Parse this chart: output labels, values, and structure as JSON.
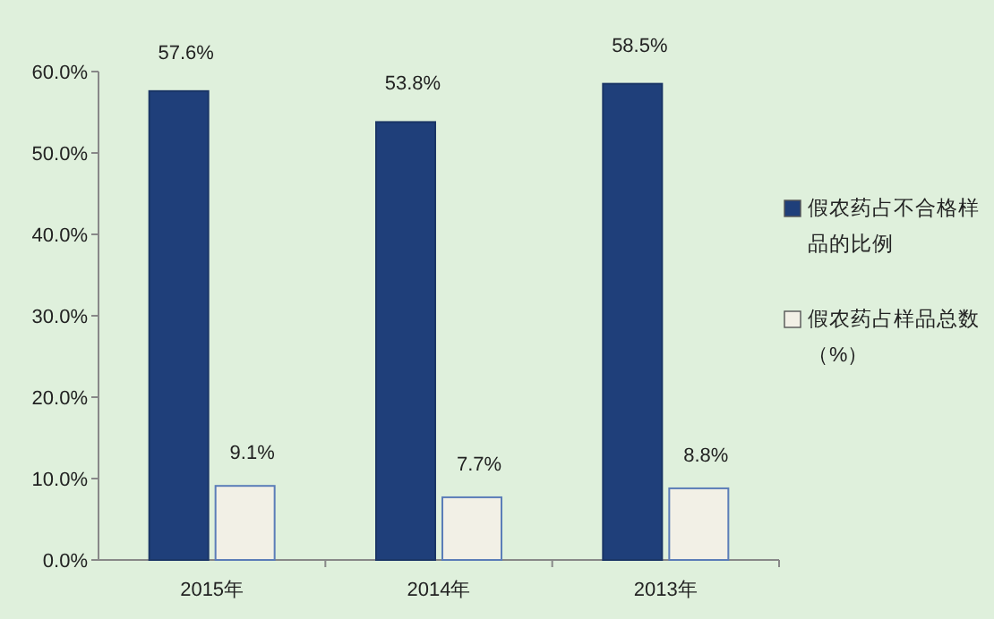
{
  "chart_data": {
    "type": "bar",
    "categories": [
      "2015年",
      "2014年",
      "2013年"
    ],
    "series": [
      {
        "name": "假农药占不合格样品的比例",
        "color": "#1f3f7a",
        "values": [
          57.6,
          53.8,
          58.5
        ],
        "value_labels": [
          "57.6%",
          "53.8%",
          "58.5%"
        ]
      },
      {
        "name": "假农药占样品总数（%）",
        "color": "#f2f0e6",
        "values": [
          9.1,
          7.7,
          8.8
        ],
        "value_labels": [
          "9.1%",
          "7.7%",
          "8.8%"
        ]
      }
    ],
    "ylim": [
      0,
      60
    ],
    "yticks": [
      {
        "value": 0,
        "label": "0.0%"
      },
      {
        "value": 10,
        "label": "10.0%"
      },
      {
        "value": 20,
        "label": "20.0%"
      },
      {
        "value": 30,
        "label": "30.0%"
      },
      {
        "value": 40,
        "label": "40.0%"
      },
      {
        "value": 50,
        "label": "50.0%"
      },
      {
        "value": 60,
        "label": "60.0%"
      }
    ],
    "legend": "right"
  }
}
